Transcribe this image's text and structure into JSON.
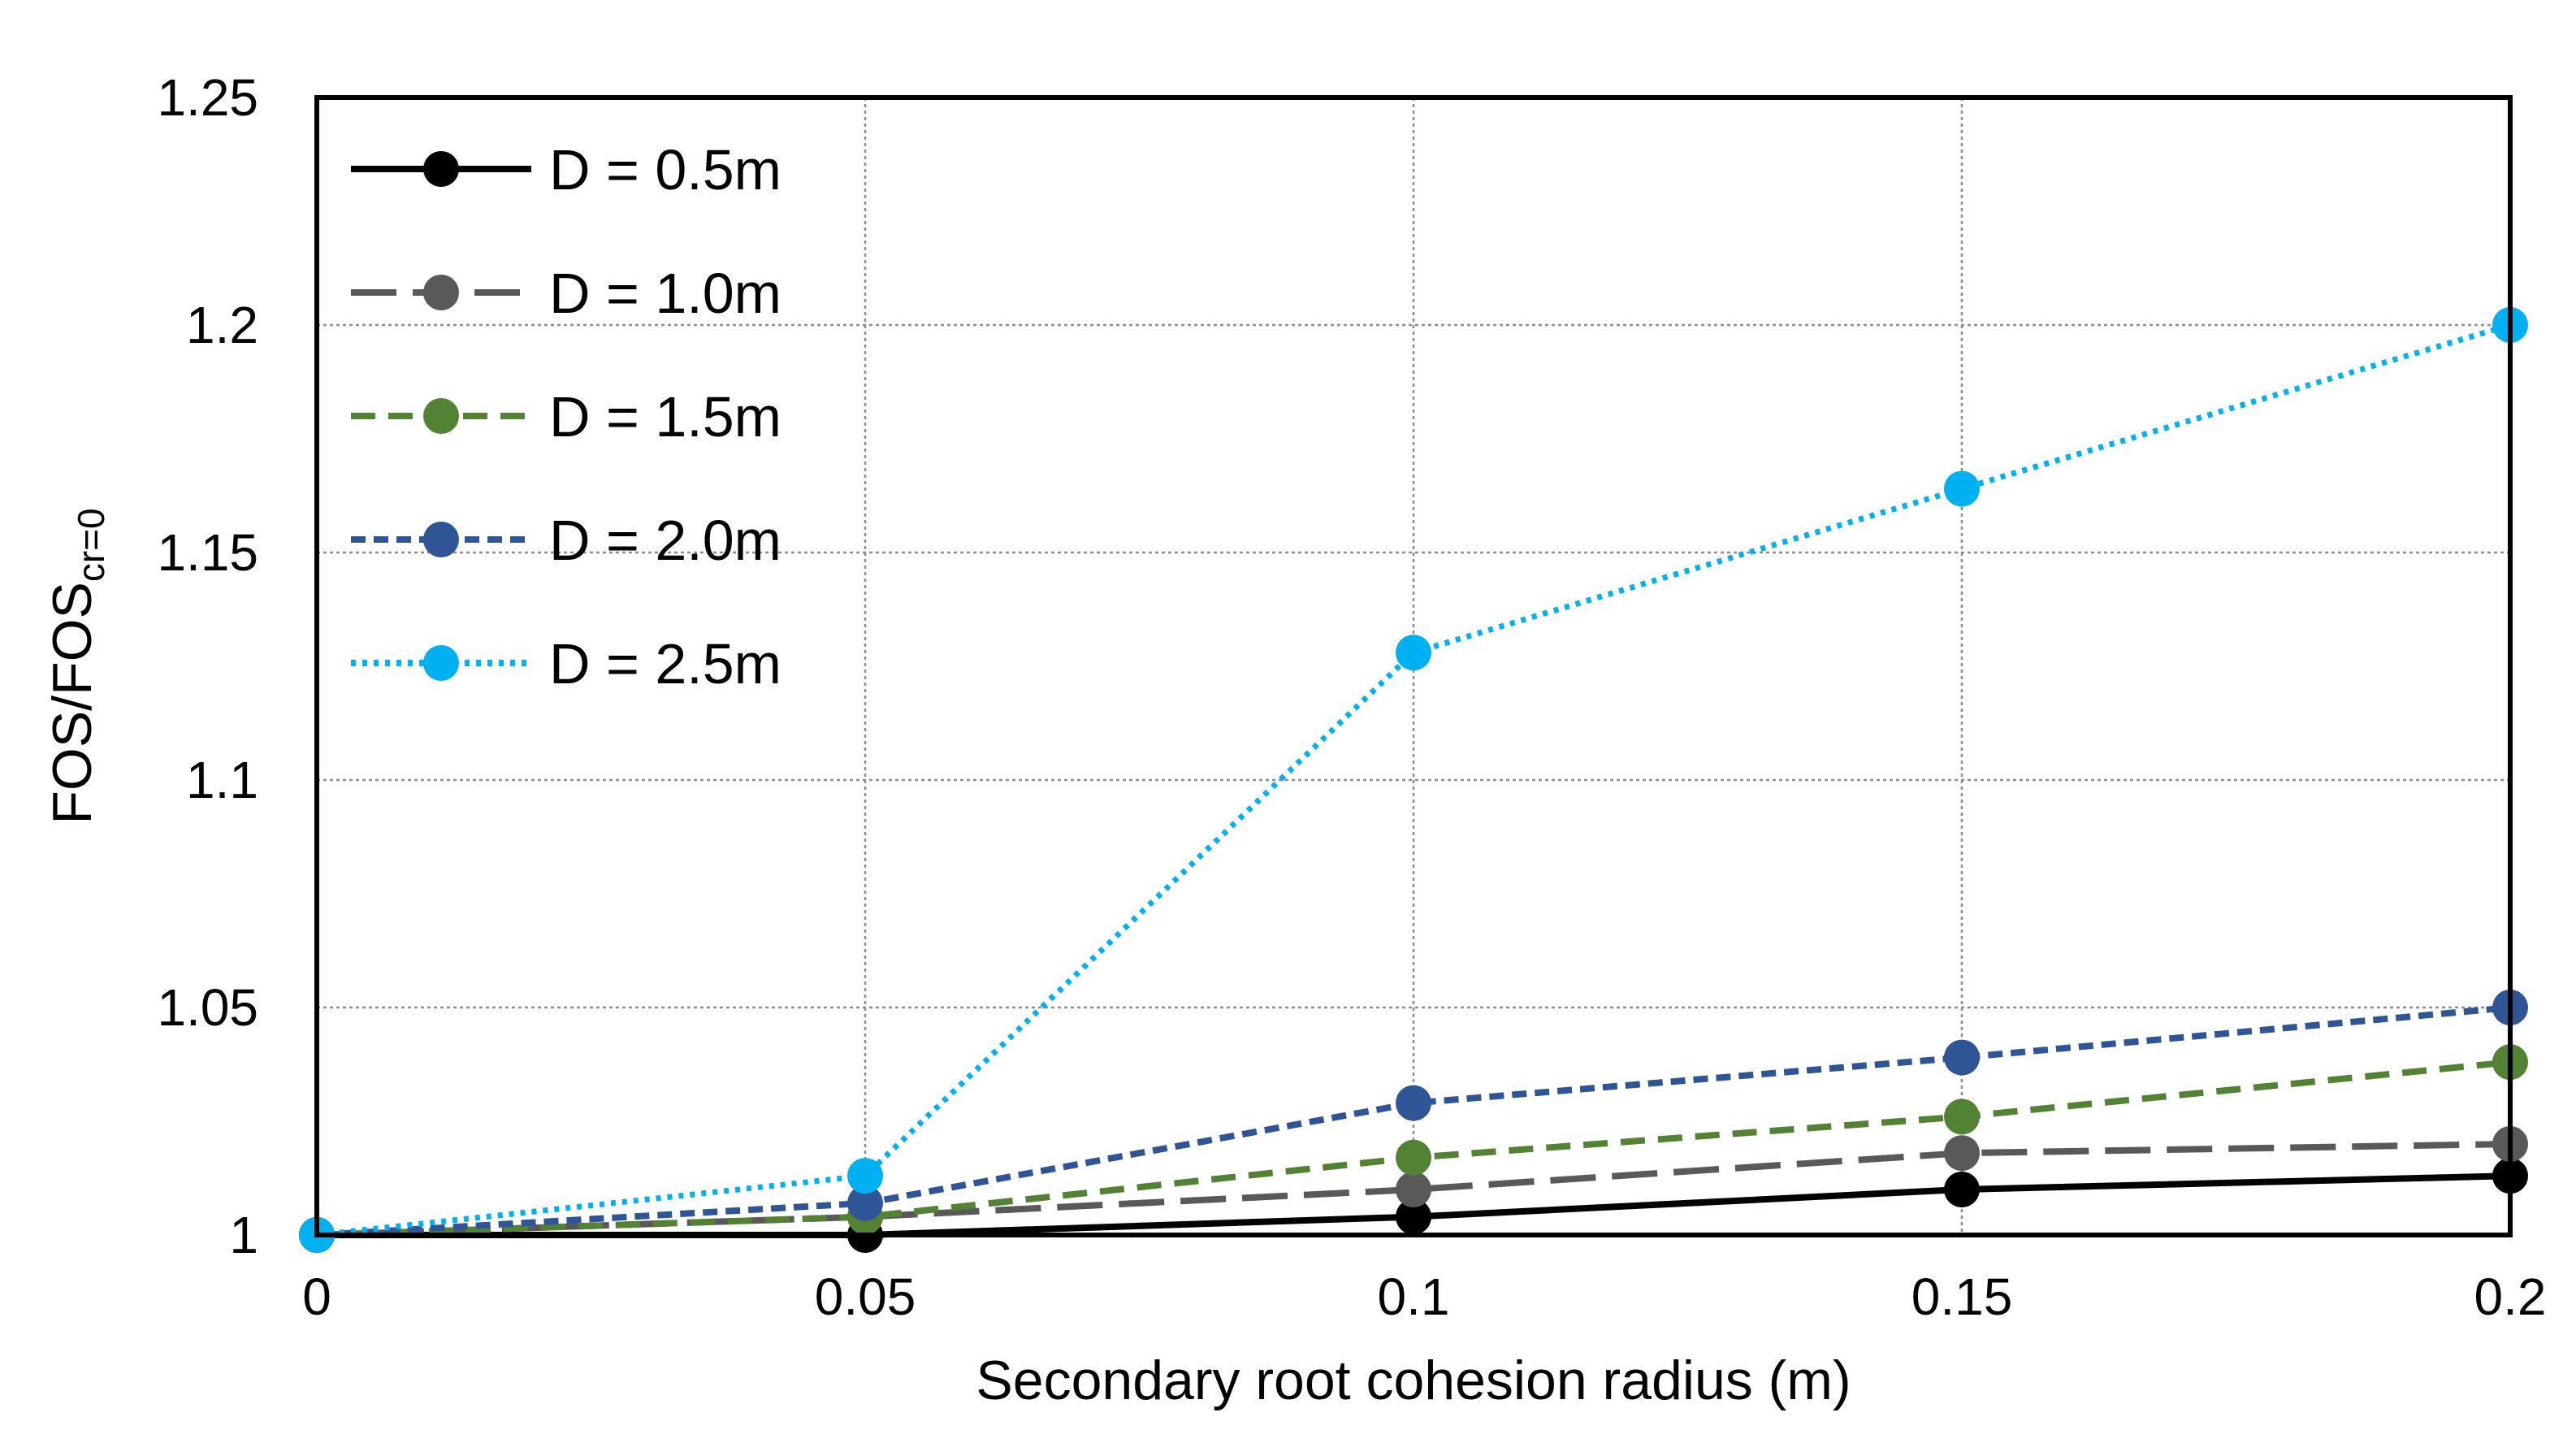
{
  "chart_data": {
    "type": "line",
    "title": "",
    "xlabel": "Secondary root cohesion radius (m)",
    "ylabel": {
      "main": "FOS/FOS",
      "subscript": "cr=0"
    },
    "x": [
      0,
      0.05,
      0.1,
      0.15,
      0.2
    ],
    "xlim": [
      0,
      0.2
    ],
    "ylim": [
      1,
      1.25
    ],
    "x_ticks": [
      0,
      0.05,
      0.1,
      0.15,
      0.2
    ],
    "x_tick_labels": [
      "0",
      "0.05",
      "0.1",
      "0.15",
      "0.2"
    ],
    "y_ticks": [
      1,
      1.05,
      1.1,
      1.15,
      1.2,
      1.25
    ],
    "y_tick_labels": [
      "1",
      "1.05",
      "1.1",
      "1.15",
      "1.2",
      "1.25"
    ],
    "grid": true,
    "legend_position": "top-left",
    "series": [
      {
        "name": "D = 0.5m",
        "values": [
          1.0,
          1.0,
          1.004,
          1.01,
          1.013
        ],
        "color": "#000000",
        "line_style": "solid"
      },
      {
        "name": "D = 1.0m",
        "values": [
          1.0,
          1.004,
          1.01,
          1.018,
          1.02
        ],
        "color": "#595959",
        "line_style": "long-dash"
      },
      {
        "name": "D = 1.5m",
        "values": [
          1.0,
          1.004,
          1.017,
          1.026,
          1.038
        ],
        "color": "#548235",
        "line_style": "dash"
      },
      {
        "name": "D = 2.0m",
        "values": [
          1.0,
          1.007,
          1.029,
          1.039,
          1.05
        ],
        "color": "#2f5597",
        "line_style": "short-dash"
      },
      {
        "name": "D = 2.5m",
        "values": [
          1.0,
          1.013,
          1.128,
          1.164,
          1.2
        ],
        "color": "#00b0f0",
        "line_style": "dotted"
      }
    ]
  }
}
